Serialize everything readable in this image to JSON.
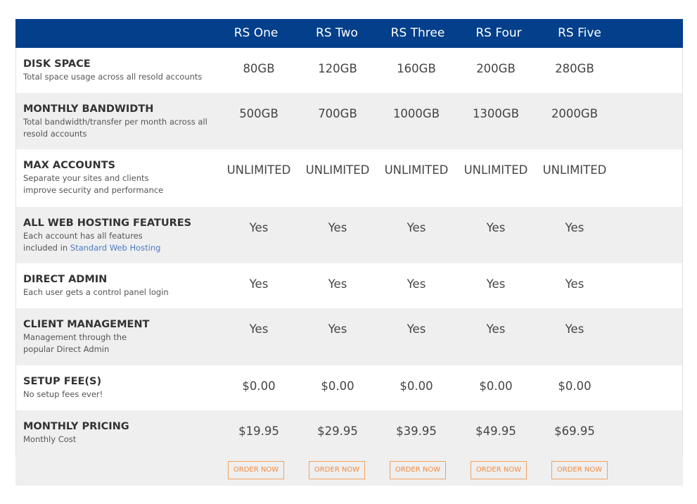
{
  "header": {
    "plans": [
      "RS One",
      "RS Two",
      "RS Three",
      "RS Four",
      "RS Five"
    ]
  },
  "rows": [
    {
      "title": "DISK SPACE",
      "desc": [
        "Total space usage across all resold accounts"
      ],
      "values": [
        "80GB",
        "120GB",
        "160GB",
        "200GB",
        "280GB"
      ]
    },
    {
      "title": "MONTHLY BANDWIDTH",
      "desc": [
        "Total bandwidth/transfer per month across all",
        "resold accounts"
      ],
      "values": [
        "500GB",
        "700GB",
        "1000GB",
        "1300GB",
        "2000GB"
      ]
    },
    {
      "title": "MAX ACCOUNTS",
      "desc": [
        "Separate your sites and clients",
        "improve security and performance"
      ],
      "values": [
        "UNLIMITED",
        "UNLIMITED",
        "UNLIMITED",
        "UNLIMITED",
        "UNLIMITED"
      ]
    },
    {
      "title": "ALL WEB HOSTING FEATURES",
      "desc": [
        "Each account has all features",
        "included in"
      ],
      "link": "Standard Web Hosting",
      "values": [
        "Yes",
        "Yes",
        "Yes",
        "Yes",
        "Yes"
      ]
    },
    {
      "title": "DIRECT ADMIN",
      "desc": [
        "Each user gets a control panel login"
      ],
      "values": [
        "Yes",
        "Yes",
        "Yes",
        "Yes",
        "Yes"
      ]
    },
    {
      "title": "CLIENT MANAGEMENT",
      "desc": [
        "Management through the",
        "popular Direct Admin"
      ],
      "values": [
        "Yes",
        "Yes",
        "Yes",
        "Yes",
        "Yes"
      ]
    },
    {
      "title": "SETUP FEE(S)",
      "desc": [
        "No setup fees ever!"
      ],
      "values": [
        "$0.00",
        "$0.00",
        "$0.00",
        "$0.00",
        "$0.00"
      ]
    },
    {
      "title": "MONTHLY PRICING",
      "desc": [
        "Monthly Cost"
      ],
      "values": [
        "$19.95",
        "$29.95",
        "$39.95",
        "$49.95",
        "$69.95"
      ]
    }
  ],
  "buttons": [
    "ORDER NOW",
    "ORDER NOW",
    "ORDER NOW",
    "ORDER NOW",
    "ORDER NOW"
  ]
}
